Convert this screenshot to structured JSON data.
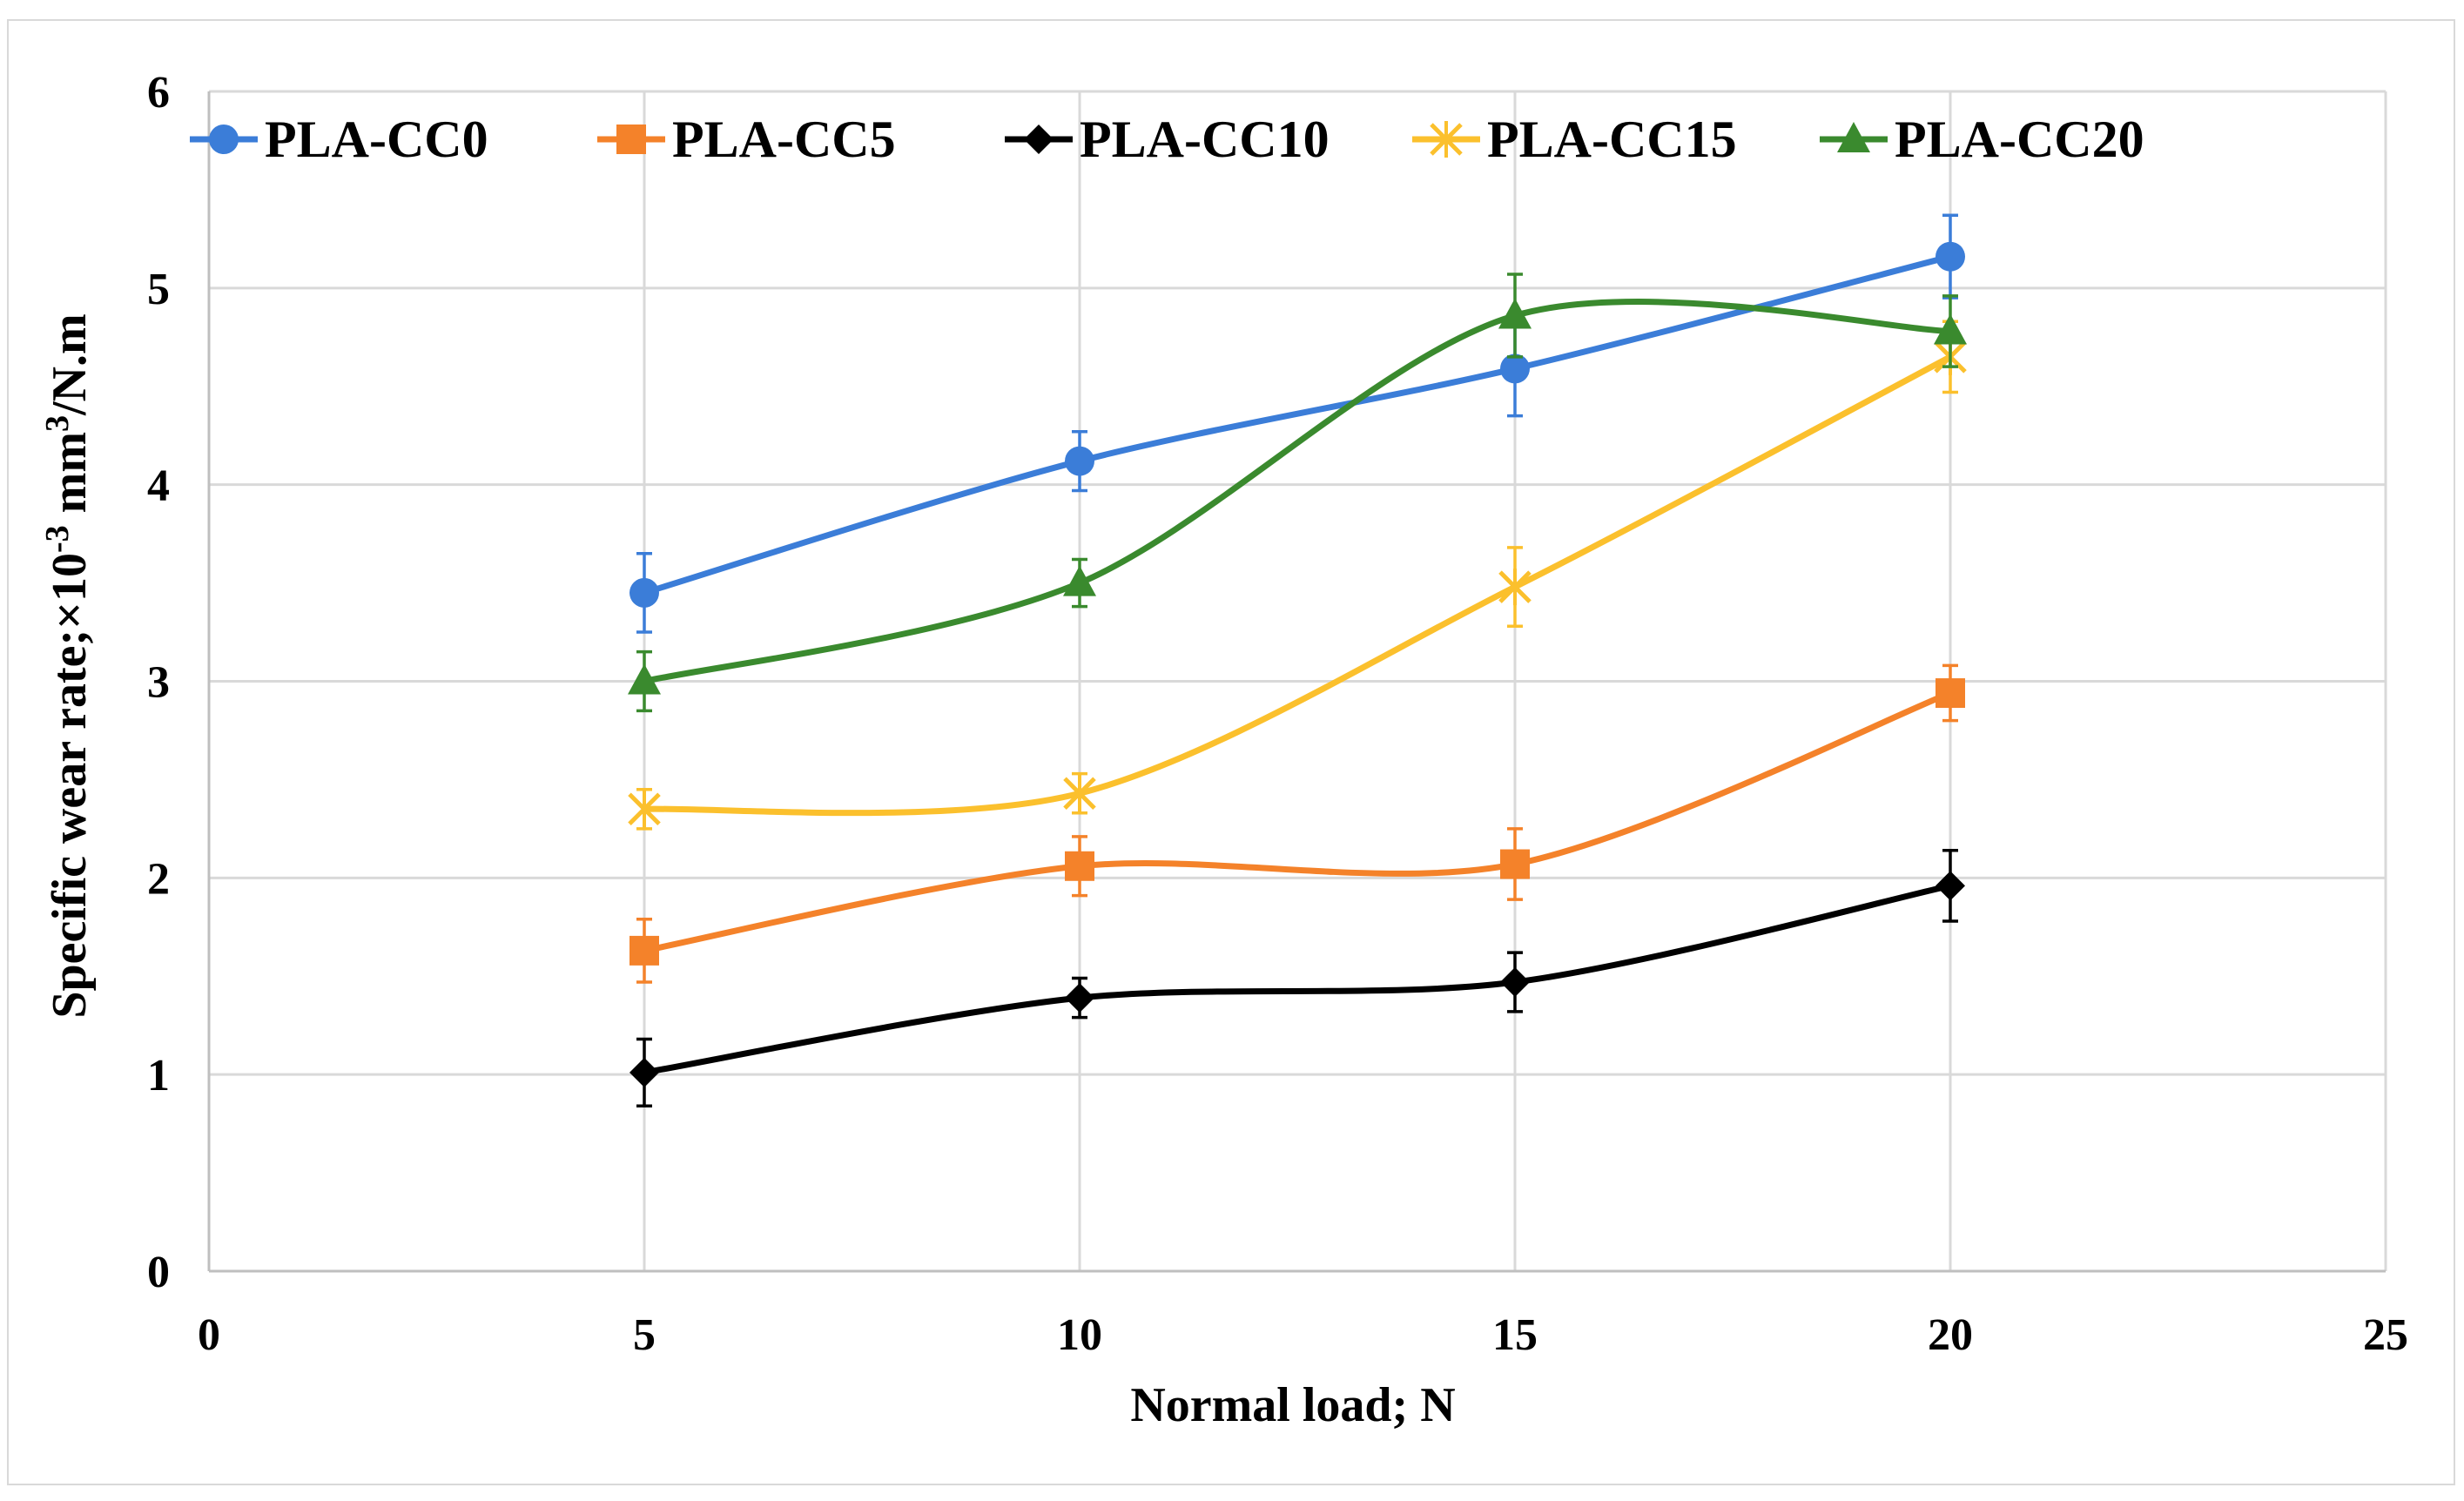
{
  "chart_data": {
    "type": "line",
    "title": "",
    "xlabel": "Normal load; N",
    "ylabel_parts": [
      "Specific wear rate;×10",
      "-3",
      " mm",
      "3",
      "/N.m"
    ],
    "xlim": [
      0,
      25
    ],
    "ylim": [
      0,
      6
    ],
    "xticks": [
      0,
      5,
      10,
      15,
      20,
      25
    ],
    "yticks": [
      0,
      1,
      2,
      3,
      4,
      5,
      6
    ],
    "grid": true,
    "legend_position": "top",
    "x": [
      5,
      10,
      15,
      20
    ],
    "series": [
      {
        "name": "PLA-CC0",
        "color": "#3b7dd8",
        "marker": "circle",
        "values": [
          3.45,
          4.12,
          4.59,
          5.16
        ],
        "errors": [
          0.2,
          0.15,
          0.24,
          0.21
        ]
      },
      {
        "name": "PLA-CC5",
        "color": "#f4822a",
        "marker": "square",
        "values": [
          1.63,
          2.06,
          2.07,
          2.94
        ],
        "errors": [
          0.16,
          0.15,
          0.18,
          0.14
        ]
      },
      {
        "name": "PLA-CC10",
        "color": "#000000",
        "marker": "diamond",
        "values": [
          1.01,
          1.39,
          1.47,
          1.96
        ],
        "errors": [
          0.17,
          0.1,
          0.15,
          0.18
        ]
      },
      {
        "name": "PLA-CC15",
        "color": "#fbc02d",
        "marker": "x",
        "values": [
          2.35,
          2.43,
          3.48,
          4.65
        ],
        "errors": [
          0.1,
          0.1,
          0.2,
          0.18
        ]
      },
      {
        "name": "PLA-CC20",
        "color": "#3a8a2e",
        "marker": "triangle",
        "values": [
          3.0,
          3.5,
          4.86,
          4.78
        ],
        "errors": [
          0.15,
          0.12,
          0.21,
          0.18
        ]
      }
    ]
  }
}
